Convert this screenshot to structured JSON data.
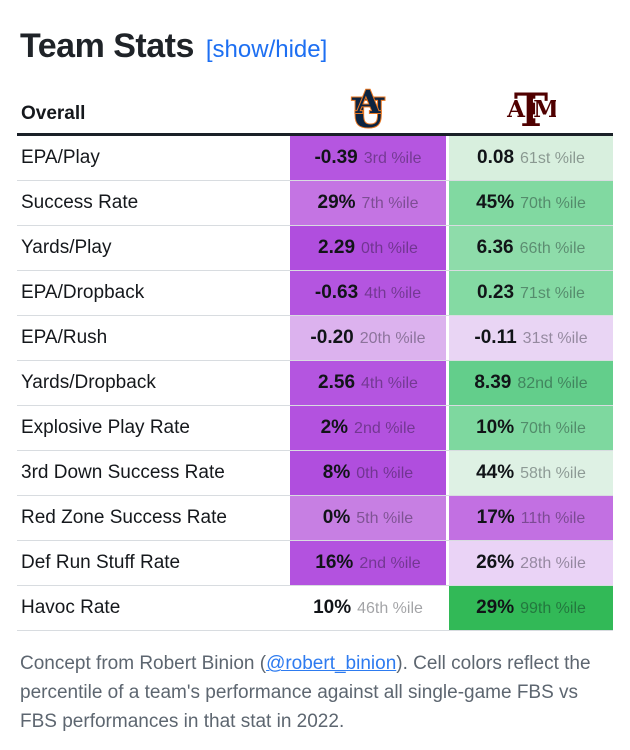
{
  "title": "Team Stats",
  "toggle_label": "[show/hide]",
  "table": {
    "header_label": "Overall",
    "teams": [
      {
        "name": "Auburn",
        "icon": "auburn-au-logo"
      },
      {
        "name": "Texas A&M",
        "icon": "texas-am-atm-logo"
      }
    ],
    "rows": [
      {
        "label": "EPA/Play",
        "au": {
          "value": "-0.39",
          "pct": "3rd %ile",
          "bg": "#b556e0"
        },
        "am": {
          "value": "0.08",
          "pct": "61st %ile",
          "bg": "#d8efde"
        }
      },
      {
        "label": "Success Rate",
        "au": {
          "value": "29%",
          "pct": "7th %ile",
          "bg": "#c474e3"
        },
        "am": {
          "value": "45%",
          "pct": "70th %ile",
          "bg": "#81d9a1"
        }
      },
      {
        "label": "Yards/Play",
        "au": {
          "value": "2.29",
          "pct": "0th %ile",
          "bg": "#b04ede"
        },
        "am": {
          "value": "6.36",
          "pct": "66th %ile",
          "bg": "#8edcaa"
        }
      },
      {
        "label": "EPA/Dropback",
        "au": {
          "value": "-0.63",
          "pct": "4th %ile",
          "bg": "#b455e0"
        },
        "am": {
          "value": "0.23",
          "pct": "71st %ile",
          "bg": "#84daa3"
        }
      },
      {
        "label": "EPA/Rush",
        "au": {
          "value": "-0.20",
          "pct": "20th %ile",
          "bg": "#dcb2ee"
        },
        "am": {
          "value": "-0.11",
          "pct": "31st %ile",
          "bg": "#e9d5f4"
        }
      },
      {
        "label": "Yards/Dropback",
        "au": {
          "value": "2.56",
          "pct": "4th %ile",
          "bg": "#b455e0"
        },
        "am": {
          "value": "8.39",
          "pct": "82nd %ile",
          "bg": "#63ce8b"
        }
      },
      {
        "label": "Explosive Play Rate",
        "au": {
          "value": "2%",
          "pct": "2nd %ile",
          "bg": "#b352df"
        },
        "am": {
          "value": "10%",
          "pct": "70th %ile",
          "bg": "#7ed89f"
        }
      },
      {
        "label": "3rd Down Success Rate",
        "au": {
          "value": "8%",
          "pct": "0th %ile",
          "bg": "#b04ede"
        },
        "am": {
          "value": "44%",
          "pct": "58th %ile",
          "bg": "#def1e4"
        }
      },
      {
        "label": "Red Zone Success Rate",
        "au": {
          "value": "0%",
          "pct": "5th %ile",
          "bg": "#c77fe3"
        },
        "am": {
          "value": "17%",
          "pct": "11th %ile",
          "bg": "#c270e2"
        }
      },
      {
        "label": "Def Run Stuff Rate",
        "au": {
          "value": "16%",
          "pct": "2nd %ile",
          "bg": "#b352df"
        },
        "am": {
          "value": "26%",
          "pct": "28th %ile",
          "bg": "#ead3f6"
        }
      },
      {
        "label": "Havoc Rate",
        "au": {
          "value": "10%",
          "pct": "46th %ile",
          "bg": "#ffffff"
        },
        "am": {
          "value": "29%",
          "pct": "99th %ile",
          "bg": "#32b957"
        }
      }
    ]
  },
  "footer": {
    "text_before_link": "Concept from Robert Binion (",
    "link": "@robert_binion",
    "text_after_link": "). Cell colors reflect the percentile of a team's performance against all single-game FBS vs FBS performances in that stat in 2022."
  },
  "colors": {
    "link_blue": "#1d6ff2",
    "auburn_navy": "#0c2340",
    "auburn_orange": "#e87722",
    "tamu_maroon": "#500000",
    "header_border": "#1a2028",
    "row_border": "#d8dce0",
    "footer_gray": "#5d6670",
    "low_percentile_purple": "#b04ede",
    "high_percentile_green": "#32b957"
  }
}
